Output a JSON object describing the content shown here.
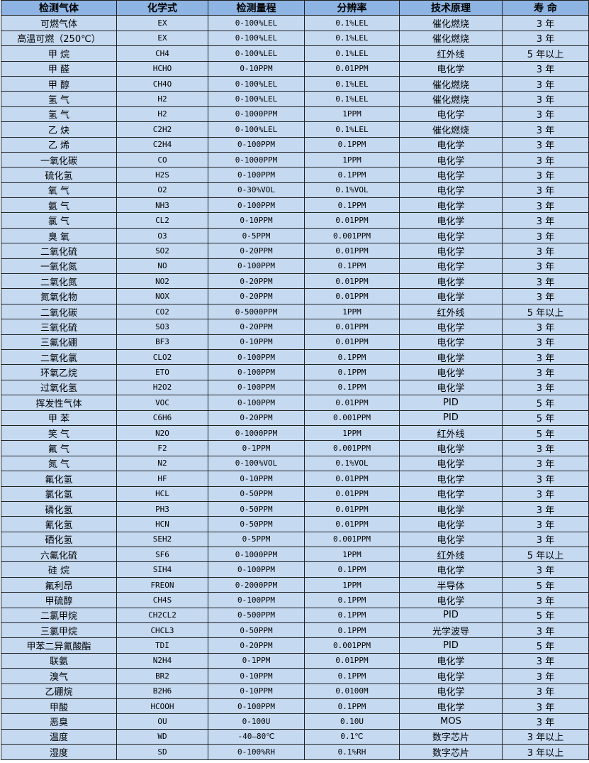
{
  "headers": [
    "检测气体",
    "化学式",
    "检测量程",
    "分辨率",
    "技术原理",
    "寿 命"
  ],
  "colors": {
    "header_bg": "#8db4e2",
    "row_bg": "#c5d9f1",
    "border": "#222222"
  },
  "rows": [
    [
      "可燃气体",
      "EX",
      "0-100%LEL",
      "0.1%LEL",
      "催化燃烧",
      "3 年"
    ],
    [
      "高温可燃（250℃）",
      "EX",
      "0-100%LEL",
      "0.1%LEL",
      "催化燃烧",
      "3 年"
    ],
    [
      "甲 烷",
      "CH4",
      "0-100%LEL",
      "0.1%LEL",
      "红外线",
      "5 年以上"
    ],
    [
      "甲 醛",
      "HCHO",
      "0-10PPM",
      "0.01PPM",
      "电化学",
      "3 年"
    ],
    [
      "甲 醇",
      "CH4O",
      "0-100%LEL",
      "0.1%LEL",
      "催化燃烧",
      "3 年"
    ],
    [
      "氢 气",
      "H2",
      "0-100%LEL",
      "0.1%LEL",
      "催化燃烧",
      "3 年"
    ],
    [
      "氢 气",
      "H2",
      "0-1000PPM",
      "1PPM",
      "电化学",
      "3 年"
    ],
    [
      "乙 炔",
      "C2H2",
      "0-100%LEL",
      "0.1%LEL",
      "催化燃烧",
      "3 年"
    ],
    [
      "乙 烯",
      "C2H4",
      "0-100PPM",
      "0.1PPM",
      "电化学",
      "3 年"
    ],
    [
      "一氧化碳",
      "CO",
      "0-1000PPM",
      "1PPM",
      "电化学",
      "3 年"
    ],
    [
      "硫化氢",
      "H2S",
      "0-100PPM",
      "0.1PPM",
      "电化学",
      "3 年"
    ],
    [
      "氧 气",
      "O2",
      "0-30%VOL",
      "0.1%VOL",
      "电化学",
      "3 年"
    ],
    [
      "氨 气",
      "NH3",
      "0-100PPM",
      "0.1PPM",
      "电化学",
      "3 年"
    ],
    [
      "氯 气",
      "CL2",
      "0-10PPM",
      "0.01PPM",
      "电化学",
      "3 年"
    ],
    [
      "臭 氧",
      "O3",
      "0-5PPM",
      "0.001PPM",
      "电化学",
      "3 年"
    ],
    [
      "二氧化硫",
      "SO2",
      "0-20PPM",
      "0.01PPM",
      "电化学",
      "3 年"
    ],
    [
      "一氧化氮",
      "NO",
      "0-100PPM",
      "0.1PPM",
      "电化学",
      "3 年"
    ],
    [
      "二氧化氮",
      "NO2",
      "0-20PPM",
      "0.01PPM",
      "电化学",
      "3 年"
    ],
    [
      "氮氧化物",
      "NOX",
      "0-20PPM",
      "0.01PPM",
      "电化学",
      "3 年"
    ],
    [
      "二氧化碳",
      "CO2",
      "0-5000PPM",
      "1PPM",
      "红外线",
      "5 年以上"
    ],
    [
      "三氧化硫",
      "SO3",
      "0-20PPM",
      "0.01PPM",
      "电化学",
      "3 年"
    ],
    [
      "三氟化硼",
      "BF3",
      "0-10PPM",
      "0.01PPM",
      "电化学",
      "3 年"
    ],
    [
      "二氧化氯",
      "CLO2",
      "0-100PPM",
      "0.1PPM",
      "电化学",
      "3 年"
    ],
    [
      "环氧乙烷",
      "ETO",
      "0-100PPM",
      "0.1PPM",
      "电化学",
      "3 年"
    ],
    [
      "过氧化氢",
      "H2O2",
      "0-100PPM",
      "0.1PPM",
      "电化学",
      "3 年"
    ],
    [
      "挥发性气体",
      "VOC",
      "0-100PPM",
      "0.01PPM",
      "PID",
      "5 年"
    ],
    [
      "甲 苯",
      "C6H6",
      "0-20PPM",
      "0.001PPM",
      "PID",
      "5 年"
    ],
    [
      "笑 气",
      "N2O",
      "0-1000PPM",
      "1PPM",
      "红外线",
      "5 年"
    ],
    [
      "氟 气",
      "F2",
      "0-1PPM",
      "0.001PPM",
      "电化学",
      "3 年"
    ],
    [
      "氮 气",
      "N2",
      "0-100%VOL",
      "0.1%VOL",
      "电化学",
      "3 年"
    ],
    [
      "氟化氢",
      "HF",
      "0-10PPM",
      "0.01PPM",
      "电化学",
      "3 年"
    ],
    [
      "氯化氢",
      "HCL",
      "0-50PPM",
      "0.01PPM",
      "电化学",
      "3 年"
    ],
    [
      "磷化氢",
      "PH3",
      "0-50PPM",
      "0.01PPM",
      "电化学",
      "3 年"
    ],
    [
      "氰化氢",
      "HCN",
      "0-50PPM",
      "0.01PPM",
      "电化学",
      "3 年"
    ],
    [
      "硒化氢",
      "SEH2",
      "0-5PPM",
      "0.001PPM",
      "电化学",
      "3 年"
    ],
    [
      "六氟化硫",
      "SF6",
      "0-1000PPM",
      "1PPM",
      "红外线",
      "5 年以上"
    ],
    [
      "硅 烷",
      "SIH4",
      "0-100PPM",
      "0.1PPM",
      "电化学",
      "3 年"
    ],
    [
      "氟利昂",
      "FREON",
      "0-2000PPM",
      "1PPM",
      "半导体",
      "5 年"
    ],
    [
      "甲硫醇",
      "CH4S",
      "0-100PPM",
      "0.1PPM",
      "电化学",
      "3 年"
    ],
    [
      "二氯甲烷",
      "CH2CL2",
      "0-500PPM",
      "0.1PPM",
      "PID",
      "5 年"
    ],
    [
      "三氯甲烷",
      "CHCL3",
      "0-50PPM",
      "0.1PPM",
      "光学波导",
      "3 年"
    ],
    [
      "甲苯二异氰酸酯",
      "TDI",
      "0-20PPM",
      "0.001PPM",
      "PID",
      "5 年"
    ],
    [
      "联氨",
      "N2H4",
      "0-1PPM",
      "0.01PPM",
      "电化学",
      "3 年"
    ],
    [
      "溴气",
      "BR2",
      "0-10PPM",
      "0.1PPM",
      "电化学",
      "3 年"
    ],
    [
      "乙硼烷",
      "B2H6",
      "0-10PPM",
      "0.0100M",
      "电化学",
      "3 年"
    ],
    [
      "甲酸",
      "HCOOH",
      "0-100PPM",
      "0.1PPM",
      "电化学",
      "3 年"
    ],
    [
      "恶臭",
      "OU",
      "0-100U",
      "0.10U",
      "MOS",
      "3 年"
    ],
    [
      "温度",
      "WD",
      "-40—80℃",
      "0.1℃",
      "数字芯片",
      "3 年以上"
    ],
    [
      "湿度",
      "SD",
      "0-100%RH",
      "0.1%RH",
      "数字芯片",
      "3 年以上"
    ]
  ]
}
